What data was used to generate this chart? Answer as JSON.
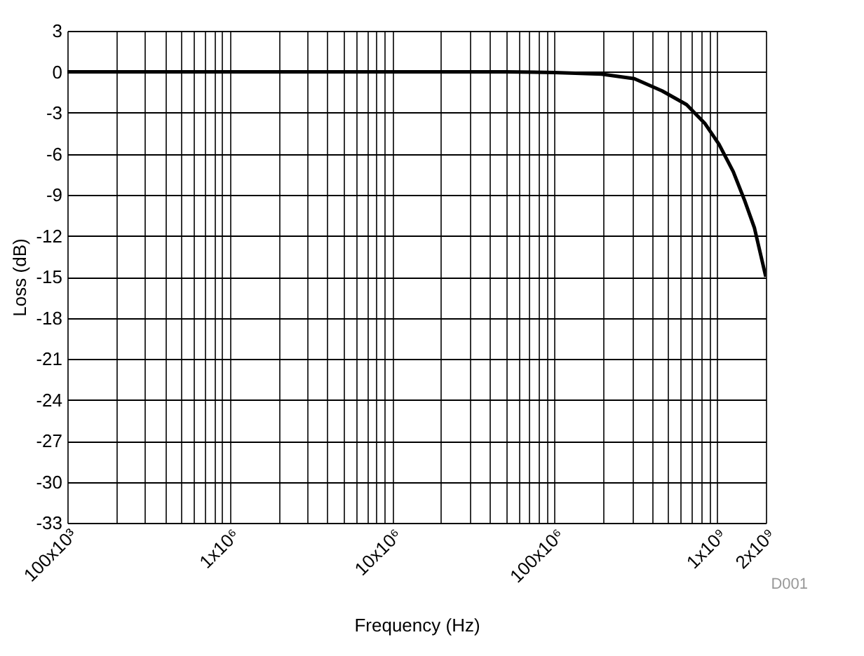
{
  "chart_data": {
    "type": "line",
    "xlabel": "Frequency (Hz)",
    "ylabel": "Loss (dB)",
    "log": "x",
    "grid": true,
    "color": "#000000",
    "line_style": "solid",
    "x": [
      100000,
      1000000,
      10000000,
      50000000,
      100000000,
      195000000,
      310000000,
      460000000,
      650000000,
      840000000,
      1030000000,
      1260000000,
      1480000000,
      1700000000,
      2000000000
    ],
    "values": [
      0,
      0,
      0,
      0,
      -0.05,
      -0.17,
      -0.5,
      -1.4,
      -2.4,
      -3.75,
      -5.3,
      -7.3,
      -9.4,
      -11.4,
      -15
    ],
    "xlim": [
      100000,
      2000000000
    ],
    "ylim": [
      -33,
      3
    ],
    "yticks": [
      -33,
      -30,
      -27,
      -24,
      -21,
      -18,
      -15,
      -12,
      -9,
      -6,
      -3,
      0,
      3
    ],
    "xticks": [
      {
        "value": 100000,
        "label": "100x10³"
      },
      {
        "value": 200000,
        "label": null
      },
      {
        "value": 300000,
        "label": null
      },
      {
        "value": 400000,
        "label": null
      },
      {
        "value": 500000,
        "label": null
      },
      {
        "value": 600000,
        "label": null
      },
      {
        "value": 700000,
        "label": null
      },
      {
        "value": 800000,
        "label": null
      },
      {
        "value": 900000,
        "label": null
      },
      {
        "value": 1000000,
        "label": "1x10⁶"
      },
      {
        "value": 2000000,
        "label": null
      },
      {
        "value": 3000000,
        "label": null
      },
      {
        "value": 4000000,
        "label": null
      },
      {
        "value": 5000000,
        "label": null
      },
      {
        "value": 6000000,
        "label": null
      },
      {
        "value": 7000000,
        "label": null
      },
      {
        "value": 8000000,
        "label": null
      },
      {
        "value": 9000000,
        "label": null
      },
      {
        "value": 10000000,
        "label": "10x10⁶"
      },
      {
        "value": 20000000,
        "label": null
      },
      {
        "value": 30000000,
        "label": null
      },
      {
        "value": 40000000,
        "label": null
      },
      {
        "value": 50000000,
        "label": null
      },
      {
        "value": 60000000,
        "label": null
      },
      {
        "value": 70000000,
        "label": null
      },
      {
        "value": 80000000,
        "label": null
      },
      {
        "value": 90000000,
        "label": null
      },
      {
        "value": 100000000,
        "label": "100x10⁶"
      },
      {
        "value": 200000000,
        "label": null
      },
      {
        "value": 300000000,
        "label": null
      },
      {
        "value": 400000000,
        "label": null
      },
      {
        "value": 500000000,
        "label": null
      },
      {
        "value": 600000000,
        "label": null
      },
      {
        "value": 700000000,
        "label": null
      },
      {
        "value": 800000000,
        "label": null
      },
      {
        "value": 900000000,
        "label": null
      },
      {
        "value": 1000000000,
        "label": "1x10⁹"
      },
      {
        "value": 2000000000,
        "label": "2x10⁹"
      }
    ],
    "annotations": [
      "D001"
    ]
  }
}
